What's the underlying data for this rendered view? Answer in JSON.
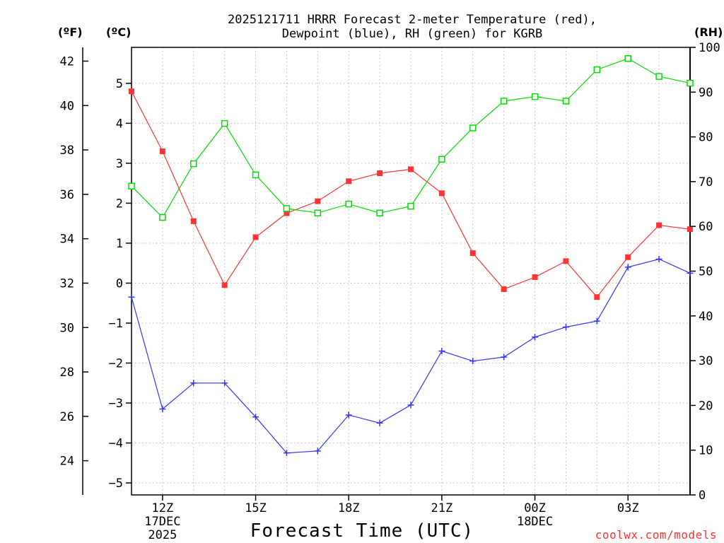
{
  "chart_data": {
    "type": "line",
    "title": "2025121711 HRRR Forecast 2-meter Temperature (red),",
    "title_line2": "Dewpoint (blue), RH (green) for KGRB",
    "xlabel": "Forecast Time (UTC)",
    "unit_labels": {
      "fahrenheit": "(ºF)",
      "celsius": "(ºC)",
      "rh": "(RH)"
    },
    "credit": "coolwx.com/models",
    "x_hours": [
      11,
      12,
      13,
      14,
      15,
      16,
      17,
      18,
      19,
      20,
      21,
      22,
      23,
      24,
      25,
      26,
      27,
      28,
      29
    ],
    "x_range": [
      11,
      29
    ],
    "x_ticks": [
      {
        "hour": 12,
        "label": "12Z",
        "sub1": "17DEC",
        "sub2": "2025"
      },
      {
        "hour": 15,
        "label": "15Z",
        "sub1": "",
        "sub2": ""
      },
      {
        "hour": 18,
        "label": "18Z",
        "sub1": "",
        "sub2": ""
      },
      {
        "hour": 21,
        "label": "21Z",
        "sub1": "",
        "sub2": ""
      },
      {
        "hour": 24,
        "label": "00Z",
        "sub1": "18DEC",
        "sub2": ""
      },
      {
        "hour": 27,
        "label": "03Z",
        "sub1": "",
        "sub2": ""
      }
    ],
    "celsius_range": [
      -5.3,
      5.9
    ],
    "celsius_ticks": [
      5,
      4,
      3,
      2,
      1,
      0,
      -1,
      -2,
      -3,
      -4,
      -5
    ],
    "fahrenheit_ticks": [
      42,
      40,
      38,
      36,
      34,
      32,
      30,
      28,
      26,
      24
    ],
    "rh_range": [
      0,
      100
    ],
    "rh_ticks": [
      100,
      90,
      80,
      70,
      60,
      50,
      40,
      30,
      20,
      10,
      0
    ],
    "series": [
      {
        "name": "Temperature",
        "axis": "celsius",
        "color": "#ff3333",
        "marker": "filled-square",
        "values": [
          4.8,
          3.3,
          1.55,
          -0.05,
          1.15,
          1.75,
          2.05,
          2.55,
          2.75,
          2.85,
          2.25,
          0.75,
          -0.15,
          0.15,
          0.55,
          -0.35,
          0.65,
          1.45,
          1.35
        ]
      },
      {
        "name": "Dewpoint",
        "axis": "celsius",
        "color": "#3333ff",
        "marker": "plus",
        "values": [
          -0.35,
          -3.15,
          -2.5,
          -2.5,
          -3.35,
          -4.25,
          -4.2,
          -3.3,
          -3.5,
          -3.05,
          -1.7,
          -1.95,
          -1.85,
          -1.35,
          -1.1,
          -0.95,
          0.4,
          0.6,
          0.25
        ]
      },
      {
        "name": "RH",
        "axis": "rh",
        "color": "#00dd00",
        "marker": "open-square",
        "values": [
          69,
          62,
          74,
          83,
          71.5,
          64,
          63,
          65,
          63,
          64.5,
          75,
          82,
          88,
          89,
          88,
          95,
          97.5,
          93.5,
          92
        ]
      }
    ]
  }
}
